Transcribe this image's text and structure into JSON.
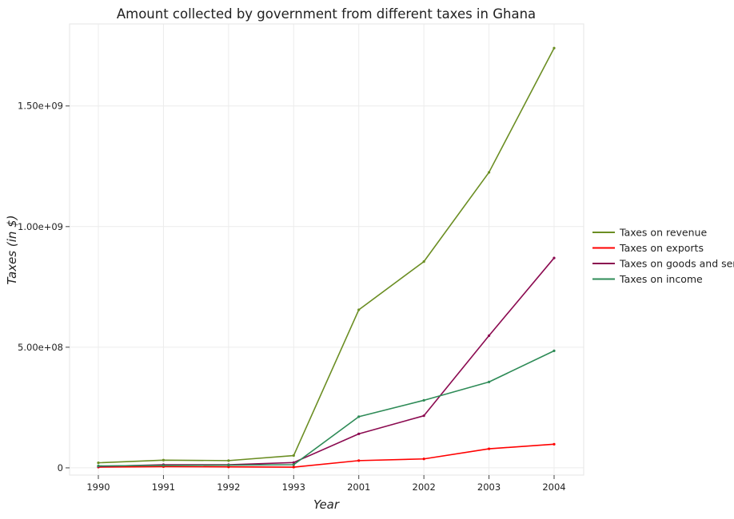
{
  "chart_data": {
    "type": "line",
    "title": "Amount collected by government from different taxes in Ghana",
    "xlabel": "Year",
    "ylabel": "Taxes (in $)",
    "categories": [
      "1990",
      "1991",
      "1992",
      "1993",
      "2001",
      "2002",
      "2003",
      "2004"
    ],
    "y_ticks": [
      0,
      500000000,
      1000000000,
      1500000000
    ],
    "y_tick_labels": [
      "0",
      "5.00e+08",
      "1.00e+09",
      "1.50e+09"
    ],
    "ylim": [
      -30000000,
      1840000000
    ],
    "grid": true,
    "legend_position": "right",
    "series": [
      {
        "name": "Taxes on revenue",
        "color": "#6b8e23",
        "values": [
          21000000,
          32000000,
          30000000,
          51000000,
          655000000,
          855000000,
          1225000000,
          1740000000
        ]
      },
      {
        "name": "Taxes on exports",
        "color": "#ff0000",
        "values": [
          3000000,
          5000000,
          4000000,
          3000000,
          30000000,
          37000000,
          79000000,
          98000000
        ]
      },
      {
        "name": "Taxes on goods and services",
        "color": "#8b0a50",
        "values": [
          6000000,
          13000000,
          13000000,
          22000000,
          141000000,
          216000000,
          548000000,
          870000000
        ]
      },
      {
        "name": "Taxes on income",
        "color": "#2e8b57",
        "values": [
          8000000,
          10000000,
          11000000,
          13000000,
          212000000,
          280000000,
          356000000,
          485000000
        ]
      }
    ]
  }
}
